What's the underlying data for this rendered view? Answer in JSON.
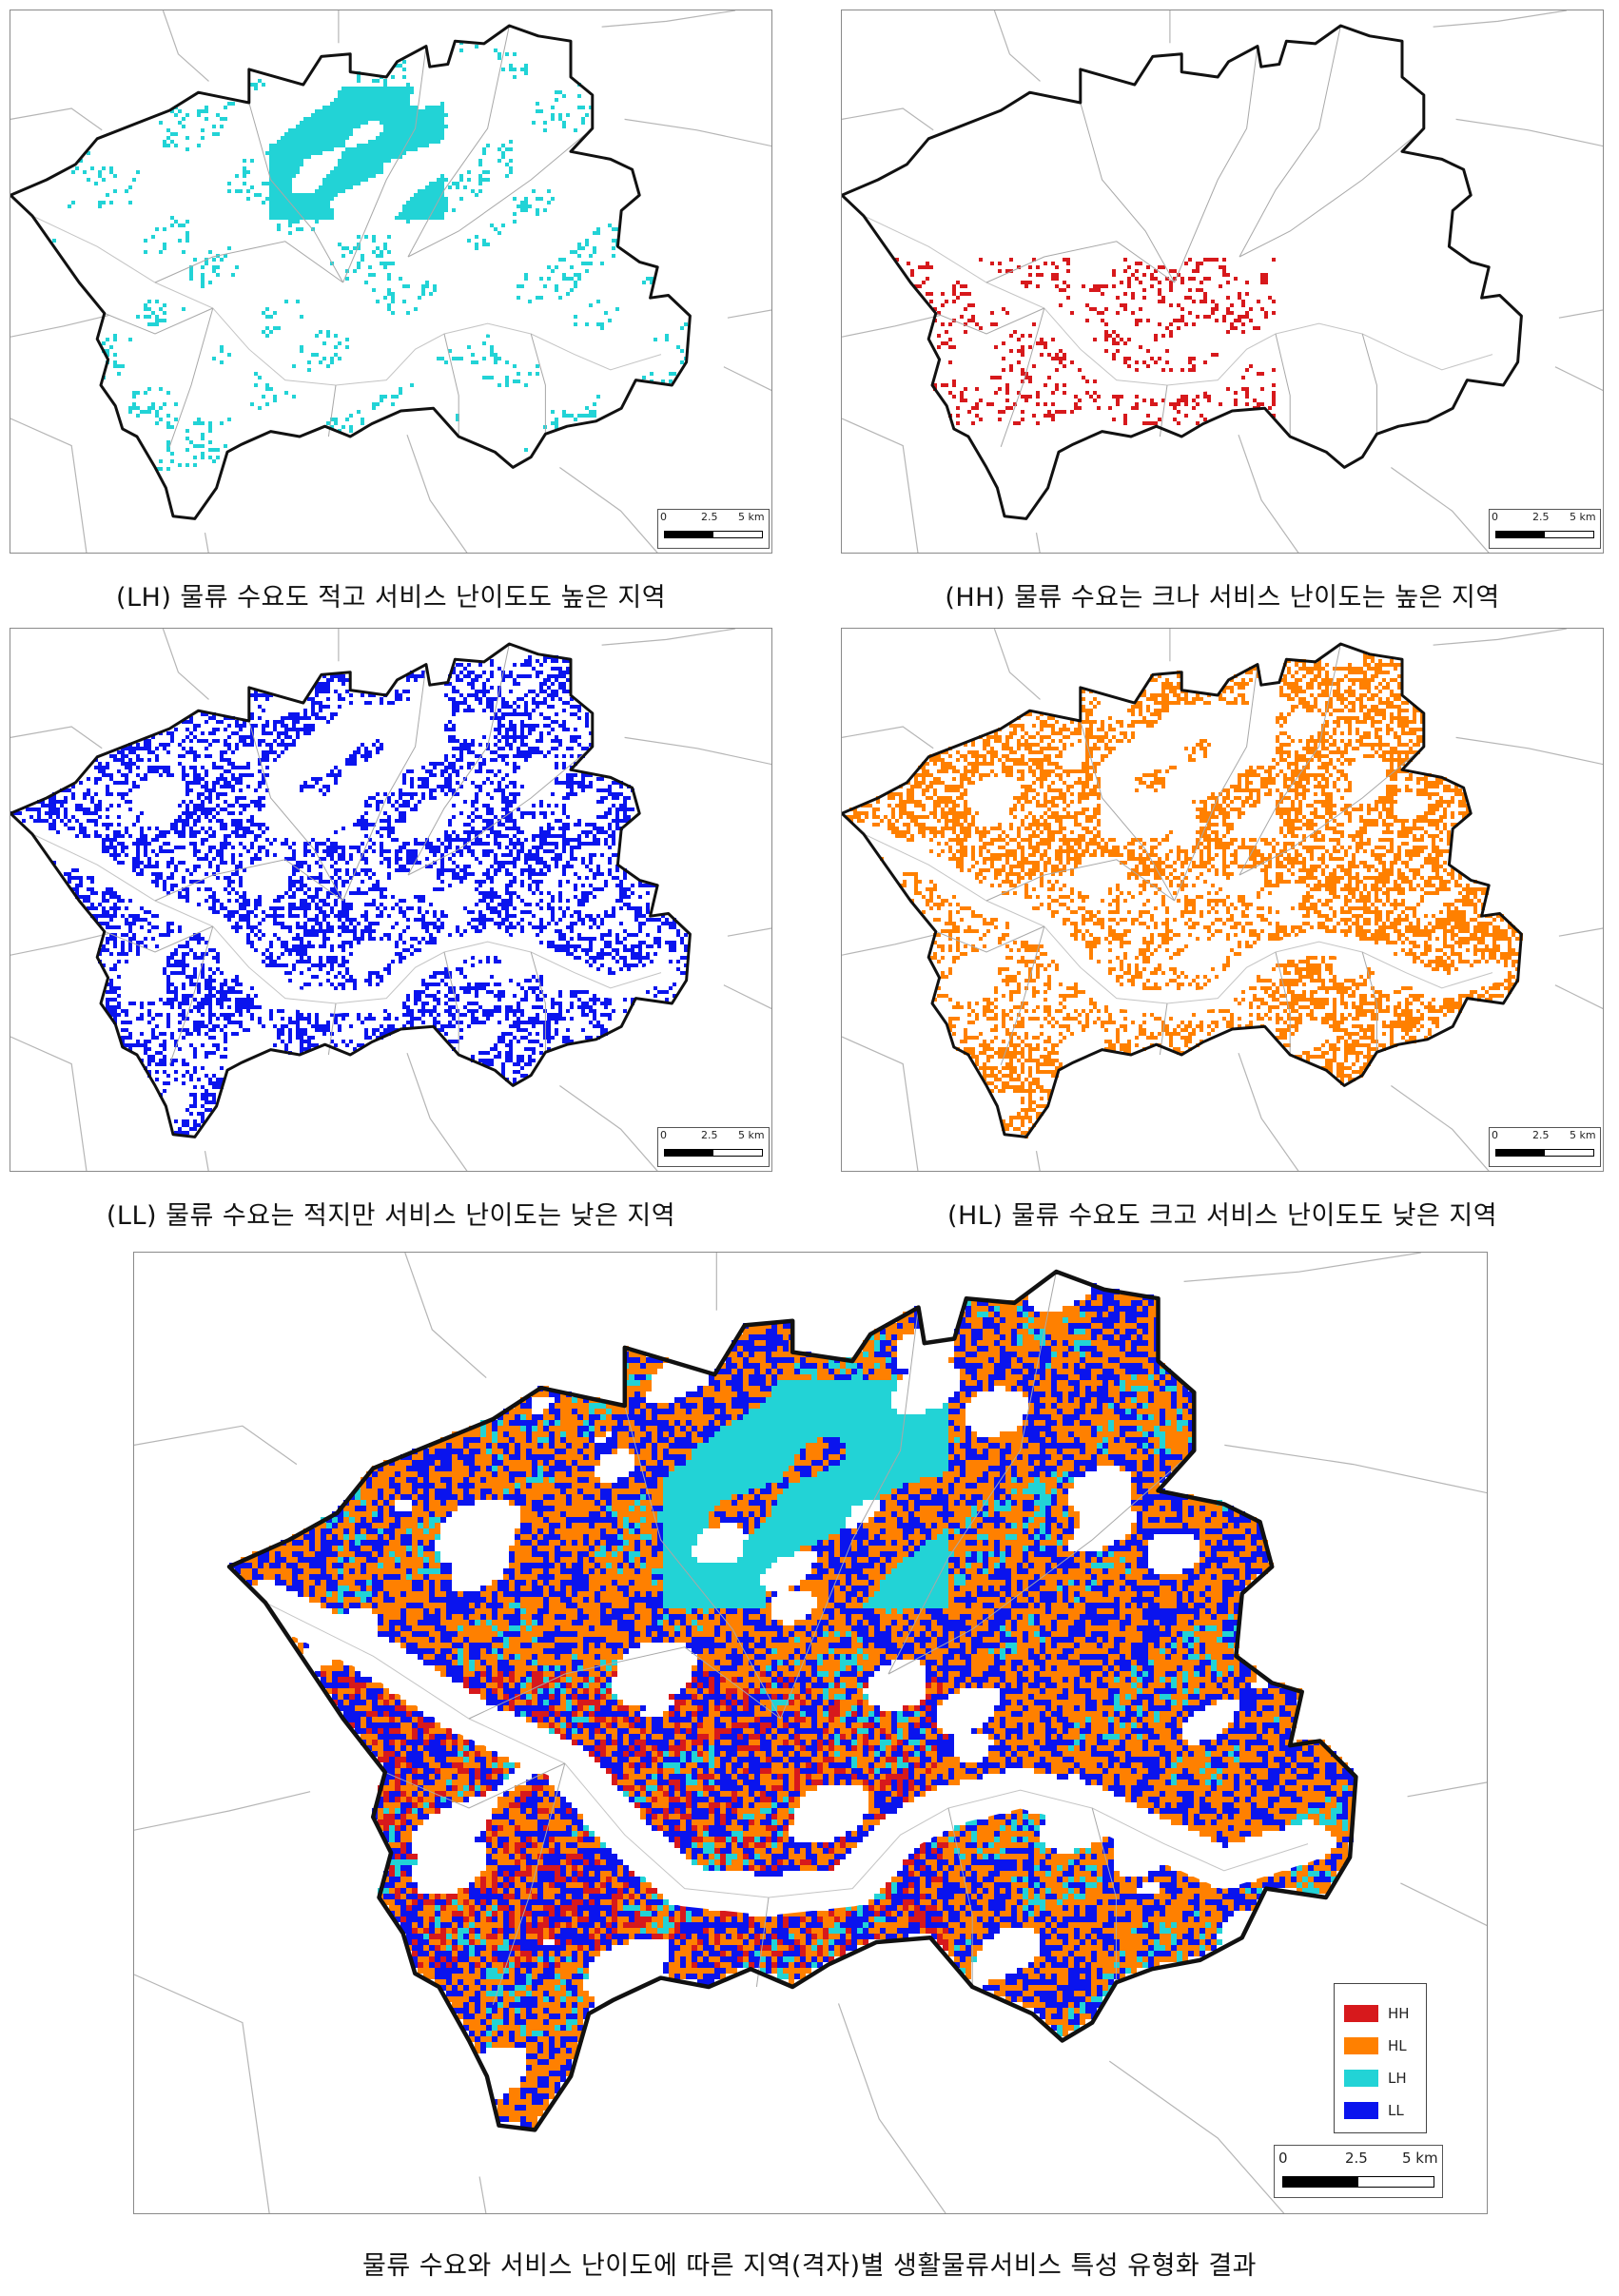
{
  "colors": {
    "HH": "#d7191c",
    "HL": "#ff8000",
    "LH": "#22d3d6",
    "LL": "#0a14ee"
  },
  "panels": [
    {
      "id": "LH",
      "category": "LH",
      "caption": "(LH) 물류 수요도 적고 서비스 난이도도 높은 지역"
    },
    {
      "id": "HH",
      "category": "HH",
      "caption": "(HH) 물류 수요는 크나 서비스 난이도는 높은 지역"
    },
    {
      "id": "LL",
      "category": "LL",
      "caption": "(LL) 물류 수요는 적지만 서비스 난이도는 낮은 지역"
    },
    {
      "id": "HL",
      "category": "HL",
      "caption": "(HL) 물류 수요도 크고 서비스 난이도도 낮은 지역"
    }
  ],
  "combined": {
    "caption": "물류 수요와 서비스 난이도에 따른 지역(격자)별 생활물류서비스 특성 유형화 결과"
  },
  "scale": {
    "zero": "0",
    "mid": "2.5",
    "end": "5 km"
  },
  "legend": {
    "items": [
      "HH",
      "HL",
      "LH",
      "LL"
    ]
  }
}
